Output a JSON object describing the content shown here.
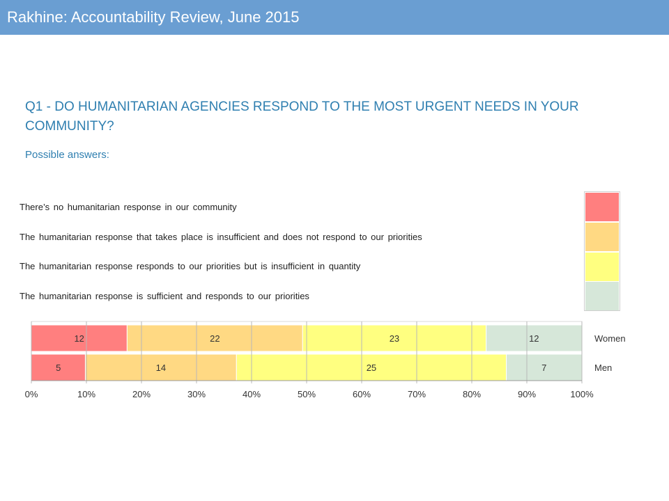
{
  "header": {
    "title": "Rakhine: Accountability Review, June 2015"
  },
  "question": "Q1 - DO HUMANITARIAN AGENCIES RESPOND TO THE MOST URGENT NEEDS IN YOUR COMMUNITY?",
  "subtitle": "Possible answers:",
  "answers": [
    {
      "label": "There’s no humanitarian response in our community",
      "color": "#ff7f7f"
    },
    {
      "label": "The humanitarian response that takes place is insufficient and does not respond to our priorities",
      "color": "#ffd983"
    },
    {
      "label": "The humanitarian response responds to our priorities but is insufficient in quantity",
      "color": "#ffff80"
    },
    {
      "label": "The humanitarian response is sufficient and responds to our priorities",
      "color": "#d6e7d9"
    }
  ],
  "chart_data": {
    "type": "bar",
    "orientation": "horizontal",
    "stacked": true,
    "normalized_percent": true,
    "categories": [
      "Women",
      "Men"
    ],
    "series": [
      {
        "name": "There’s no humanitarian response in our community",
        "values": [
          12,
          5
        ],
        "color": "#ff7f7f"
      },
      {
        "name": "The humanitarian response that takes place is insufficient and does not respond to our priorities",
        "values": [
          22,
          14
        ],
        "color": "#ffd983"
      },
      {
        "name": "The humanitarian response responds to our priorities but is insufficient in quantity",
        "values": [
          23,
          25
        ],
        "color": "#ffff80"
      },
      {
        "name": "The humanitarian response is sufficient and responds to our priorities",
        "values": [
          12,
          7
        ],
        "color": "#d6e7d9"
      }
    ],
    "xticks": [
      "0%",
      "10%",
      "20%",
      "30%",
      "40%",
      "50%",
      "60%",
      "70%",
      "80%",
      "90%",
      "100%"
    ],
    "xlim": [
      0,
      100
    ],
    "grid": true
  }
}
